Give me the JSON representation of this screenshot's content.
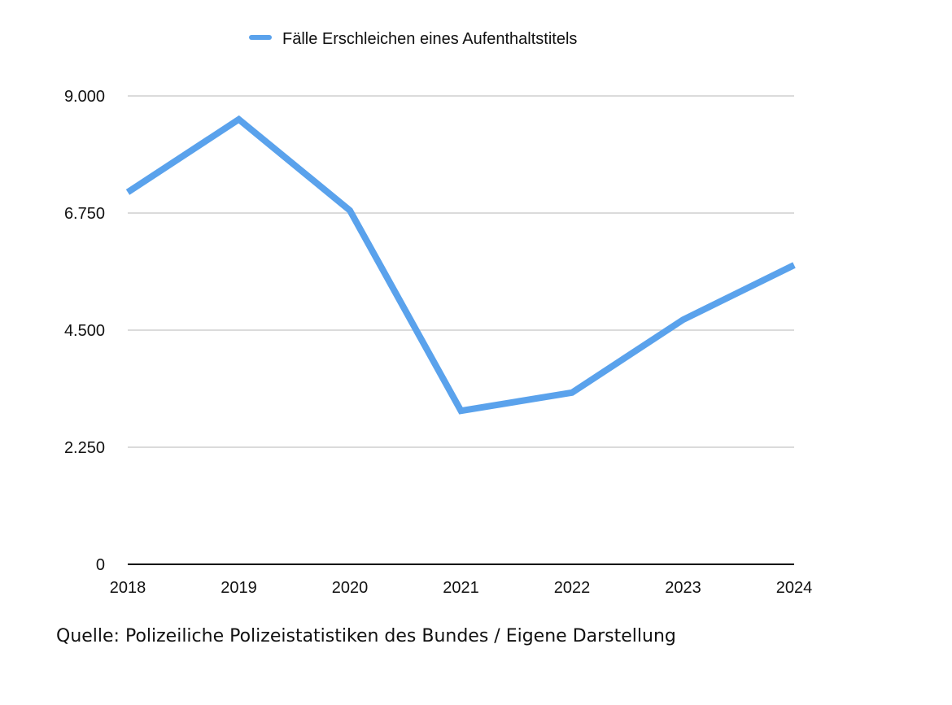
{
  "chart_data": {
    "type": "line",
    "categories": [
      "2018",
      "2019",
      "2020",
      "2021",
      "2022",
      "2023",
      "2024"
    ],
    "series": [
      {
        "name": "Fälle Erschleichen eines Aufenthaltstitels",
        "values": [
          7150,
          8550,
          6800,
          2950,
          3300,
          4700,
          5750
        ]
      }
    ],
    "ylim": [
      0,
      9000
    ],
    "yticks": [
      0,
      2250,
      4500,
      6750,
      9000
    ],
    "ytick_labels": [
      "0",
      "2.250",
      "4.500",
      "6.750",
      "9.000"
    ],
    "grid": true,
    "legend_position": "top",
    "colors": {
      "line": "#5aa2ec",
      "grid": "#cfcfcf",
      "axis": "#000000",
      "text": "#111111"
    }
  },
  "source_note": "Quelle: Polizeiliche Polizeistatistiken des Bundes / Eigene Darstellung"
}
